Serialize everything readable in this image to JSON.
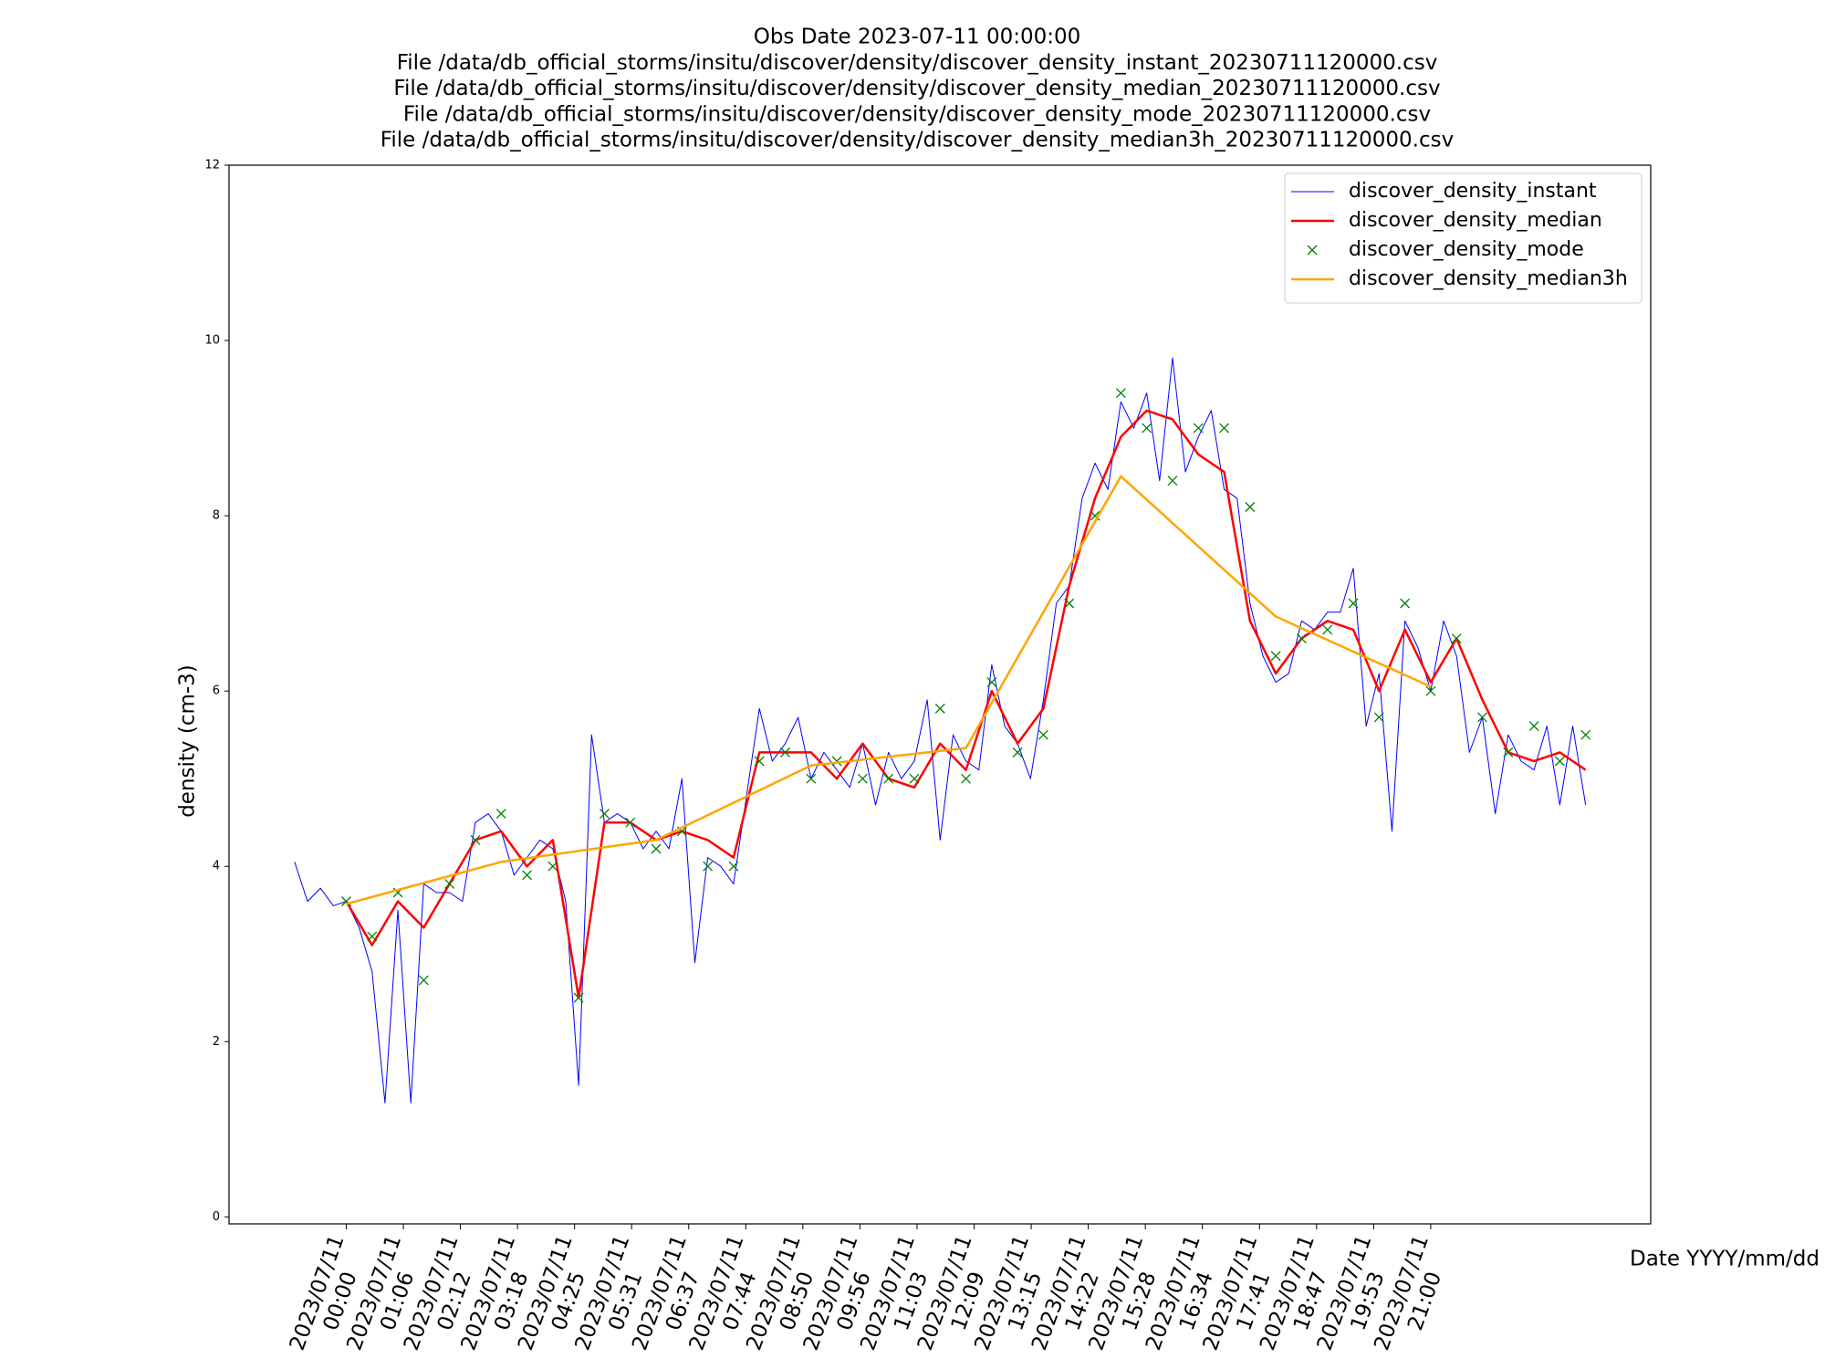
{
  "chart_data": {
    "type": "line",
    "title": [
      "Obs Date 2023-07-11 00:00:00",
      "File /data/db_official_storms/insitu/discover/density/discover_density_instant_20230711120000.csv",
      "File /data/db_official_storms/insitu/discover/density/discover_density_median_20230711120000.csv",
      "File /data/db_official_storms/insitu/discover/density/discover_density_mode_20230711120000.csv",
      "File /data/db_official_storms/insitu/discover/density/discover_density_median3h_20230711120000.csv"
    ],
    "xlabel": "Date YYYY/mm/dd",
    "ylabel": "density (cm-3)",
    "xlim": [
      -2.27,
      25.26
    ],
    "ylim": [
      -0.08,
      12
    ],
    "yticks": [
      0,
      2,
      4,
      6,
      8,
      10,
      12
    ],
    "xticks": [
      {
        "value": 0,
        "label": "2023/07/11\n00:00"
      },
      {
        "value": 1.1053,
        "label": "2023/07/11\n01:06"
      },
      {
        "value": 2.2105,
        "label": "2023/07/11\n02:12"
      },
      {
        "value": 3.3158,
        "label": "2023/07/11\n03:18"
      },
      {
        "value": 4.4211,
        "label": "2023/07/11\n04:25"
      },
      {
        "value": 5.5263,
        "label": "2023/07/11\n05:31"
      },
      {
        "value": 6.6316,
        "label": "2023/07/11\n06:37"
      },
      {
        "value": 7.7368,
        "label": "2023/07/11\n07:44"
      },
      {
        "value": 8.8421,
        "label": "2023/07/11\n08:50"
      },
      {
        "value": 9.9474,
        "label": "2023/07/11\n09:56"
      },
      {
        "value": 11.0526,
        "label": "2023/07/11\n11:03"
      },
      {
        "value": 12.1579,
        "label": "2023/07/11\n12:09"
      },
      {
        "value": 13.2632,
        "label": "2023/07/11\n13:15"
      },
      {
        "value": 14.3684,
        "label": "2023/07/11\n14:22"
      },
      {
        "value": 15.4737,
        "label": "2023/07/11\n15:28"
      },
      {
        "value": 16.5789,
        "label": "2023/07/11\n16:34"
      },
      {
        "value": 17.6842,
        "label": "2023/07/11\n17:41"
      },
      {
        "value": 18.7895,
        "label": "2023/07/11\n18:47"
      },
      {
        "value": 19.8947,
        "label": "2023/07/11\n19:53"
      },
      {
        "value": 21,
        "label": "2023/07/11\n21:00"
      }
    ],
    "legend": "upper right",
    "series": [
      {
        "name": "discover_density_instant",
        "color": "#0000ff",
        "linewidth": 1,
        "marker": "point",
        "x": [
          -1,
          -0.75,
          -0.5,
          -0.25,
          0,
          0.25,
          0.5,
          0.75,
          1,
          1.25,
          1.5,
          1.75,
          2,
          2.25,
          2.5,
          2.75,
          3,
          3.25,
          3.5,
          3.75,
          4,
          4.25,
          4.5,
          4.75,
          5,
          5.25,
          5.5,
          5.75,
          6,
          6.25,
          6.5,
          6.75,
          7,
          7.25,
          7.5,
          7.75,
          8,
          8.25,
          8.5,
          8.75,
          9,
          9.25,
          9.5,
          9.75,
          10,
          10.25,
          10.5,
          10.75,
          11,
          11.25,
          11.5,
          11.75,
          12,
          12.25,
          12.5,
          12.75,
          13,
          13.25,
          13.5,
          13.75,
          14,
          14.25,
          14.5,
          14.75,
          15,
          15.25,
          15.5,
          15.75,
          16,
          16.25,
          16.5,
          16.75,
          17,
          17.25,
          17.5,
          17.75,
          18,
          18.25,
          18.5,
          18.75,
          19,
          19.25,
          19.5,
          19.75,
          20,
          20.25,
          20.5,
          20.75,
          21,
          21.25,
          21.5,
          21.75,
          22,
          22.25,
          22.5,
          22.75,
          23,
          23.25,
          23.5,
          23.75,
          24
        ],
        "values": [
          4.05,
          3.6,
          3.75,
          3.55,
          3.6,
          3.3,
          2.8,
          1.3,
          3.5,
          1.3,
          3.8,
          3.7,
          3.7,
          3.6,
          4.5,
          4.6,
          4.4,
          3.9,
          4.1,
          4.3,
          4.2,
          3.6,
          1.5,
          5.5,
          4.5,
          4.6,
          4.5,
          4.2,
          4.4,
          4.2,
          5.0,
          2.9,
          4.1,
          4.0,
          3.8,
          4.8,
          5.8,
          5.2,
          5.4,
          5.7,
          5.0,
          5.3,
          5.1,
          4.9,
          5.4,
          4.7,
          5.3,
          5.0,
          5.2,
          5.9,
          4.3,
          5.5,
          5.2,
          5.1,
          6.3,
          5.6,
          5.4,
          5.0,
          5.9,
          7.0,
          7.2,
          8.2,
          8.6,
          8.3,
          9.3,
          9.0,
          9.4,
          8.4,
          9.8,
          8.5,
          8.9,
          9.2,
          8.3,
          8.2,
          7.0,
          6.4,
          6.1,
          6.2,
          6.8,
          6.7,
          6.9,
          6.9,
          7.4,
          5.6,
          6.2,
          4.4,
          6.8,
          6.5,
          6.0,
          6.8,
          6.4,
          5.3,
          5.7,
          4.6,
          5.5,
          5.2,
          5.1,
          5.6,
          4.7,
          5.6,
          4.7
        ]
      },
      {
        "name": "discover_density_median",
        "color": "#ff0000",
        "linewidth": 2.5,
        "x": [
          0,
          0.5,
          1,
          1.5,
          2,
          2.5,
          3,
          3.5,
          4,
          4.5,
          5,
          5.5,
          6,
          6.5,
          7,
          7.5,
          8,
          8.5,
          9,
          9.5,
          10,
          10.5,
          11,
          11.5,
          12,
          12.5,
          13,
          13.5,
          14,
          14.5,
          15,
          15.5,
          16,
          16.5,
          17,
          17.5,
          18,
          18.5,
          19,
          19.5,
          20,
          20.5,
          21,
          21.5,
          22,
          22.5,
          23,
          23.5,
          24
        ],
        "values": [
          3.6,
          3.1,
          3.6,
          3.3,
          3.8,
          4.3,
          4.4,
          4.0,
          4.3,
          2.5,
          4.5,
          4.5,
          4.3,
          4.4,
          4.3,
          4.1,
          5.3,
          5.3,
          5.3,
          5.0,
          5.4,
          5.0,
          4.9,
          5.4,
          5.1,
          6.0,
          5.4,
          5.8,
          7.2,
          8.2,
          8.9,
          9.2,
          9.1,
          8.7,
          8.5,
          6.8,
          6.2,
          6.6,
          6.8,
          6.7,
          6.0,
          6.7,
          6.1,
          6.6,
          5.9,
          5.3,
          5.2,
          5.3,
          5.1
        ]
      },
      {
        "name": "discover_density_mode",
        "color": "#008000",
        "marker": "x",
        "x": [
          0,
          0.5,
          1,
          1.5,
          2,
          2.5,
          3,
          3.5,
          4,
          4.5,
          5,
          5.5,
          6,
          6.5,
          7,
          7.5,
          8,
          8.5,
          9,
          9.5,
          10,
          10.5,
          11,
          11.5,
          12,
          12.5,
          13,
          13.5,
          14,
          14.5,
          15,
          15.5,
          16,
          16.5,
          17,
          17.5,
          18,
          18.5,
          19,
          19.5,
          20,
          20.5,
          21,
          21.5,
          22,
          22.5,
          23,
          23.5,
          24
        ],
        "values": [
          3.6,
          3.2,
          3.7,
          2.7,
          3.8,
          4.3,
          4.6,
          3.9,
          4.0,
          2.5,
          4.6,
          4.5,
          4.2,
          4.4,
          4.0,
          4.0,
          5.2,
          5.3,
          5.0,
          5.2,
          5.0,
          5.0,
          5.0,
          5.8,
          5.0,
          6.1,
          5.3,
          5.5,
          7.0,
          8.0,
          9.4,
          9.0,
          8.4,
          9.0,
          9.0,
          8.1,
          6.4,
          6.6,
          6.7,
          7.0,
          5.7,
          7.0,
          6.0,
          6.6,
          5.7,
          5.3,
          5.6,
          5.2,
          5.5
        ]
      },
      {
        "name": "discover_density_median3h",
        "color": "#ffa500",
        "linewidth": 2.5,
        "x": [
          0,
          3,
          6,
          9,
          12,
          15,
          18,
          21
        ],
        "values": [
          3.57,
          4.05,
          4.3,
          5.15,
          5.35,
          8.45,
          6.85,
          6.05
        ]
      }
    ]
  }
}
